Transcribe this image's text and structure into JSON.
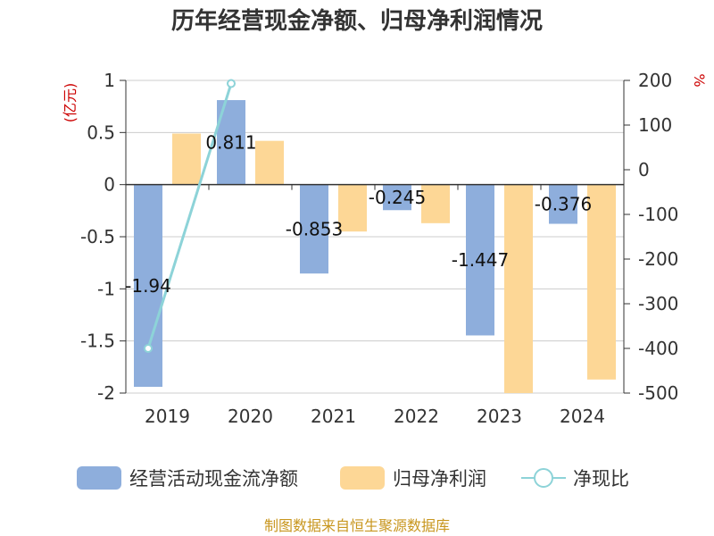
{
  "chart_data": {
    "type": "bar",
    "title": "历年经营现金净额、归母净利润情况",
    "categories": [
      "2019",
      "2020",
      "2021",
      "2022",
      "2023",
      "2024"
    ],
    "series": [
      {
        "name": "经营活动现金流净额",
        "kind": "bar",
        "axis": "left",
        "color": "#8eaedc",
        "values": [
          -1.94,
          0.811,
          -0.853,
          -0.245,
          -1.447,
          -0.376
        ],
        "labels": [
          "-1.94",
          "0.811",
          "-0.853",
          "-0.245",
          "-1.447",
          "-0.376"
        ]
      },
      {
        "name": "归母净利润",
        "kind": "bar",
        "axis": "left",
        "color": "#fdd796",
        "values": [
          0.49,
          0.42,
          -0.45,
          -0.37,
          -2.0,
          -1.87
        ]
      },
      {
        "name": "净现比",
        "kind": "line",
        "axis": "right",
        "color": "#8dd3d8",
        "values": [
          -400,
          193,
          null,
          null,
          null,
          null
        ]
      }
    ],
    "left_axis": {
      "unit": "(亿元)",
      "ylim": [
        -2,
        1
      ],
      "ticks": [
        -2,
        -1.5,
        -1,
        -0.5,
        0,
        0.5,
        1
      ],
      "tick_labels": [
        "-2",
        "-1.5",
        "-1",
        "-0.5",
        "0",
        "0.5",
        "1"
      ]
    },
    "right_axis": {
      "unit": "%",
      "ylim": [
        -500,
        200
      ],
      "ticks": [
        -500,
        -400,
        -300,
        -200,
        -100,
        0,
        100,
        200
      ],
      "tick_labels": [
        "-500",
        "-400",
        "-300",
        "-200",
        "-100",
        "0",
        "100",
        "200"
      ]
    },
    "grid": true,
    "legend_position": "bottom",
    "source": "制图数据来自恒生聚源数据库"
  }
}
